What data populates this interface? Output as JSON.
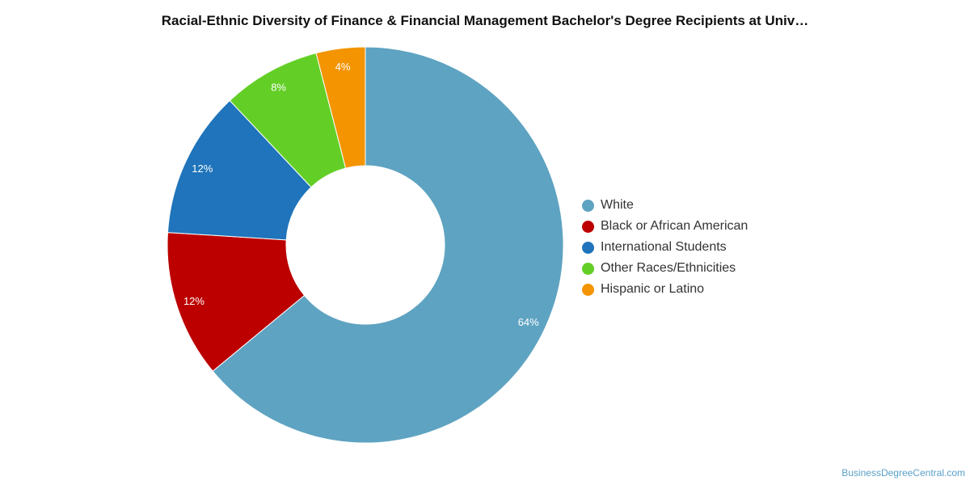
{
  "chart_data": {
    "type": "pie",
    "title": "Racial-Ethnic Diversity of Finance & Financial Management Bachelor's Degree Recipients at Univ…",
    "legend_position": "right",
    "slices": [
      {
        "label": "White",
        "value": 64,
        "display": "64%",
        "color": "#5ea3c1"
      },
      {
        "label": "Black or African American",
        "value": 12,
        "display": "12%",
        "color": "#bc0000"
      },
      {
        "label": "International Students",
        "value": 12,
        "display": "12%",
        "color": "#1f74bb"
      },
      {
        "label": "Other Races/Ethnicities",
        "value": 8,
        "display": "8%",
        "color": "#63cf26"
      },
      {
        "label": "Hispanic or Latino",
        "value": 4,
        "display": "4%",
        "color": "#f39400"
      }
    ]
  },
  "watermark": "BusinessDegreeCentral.com"
}
